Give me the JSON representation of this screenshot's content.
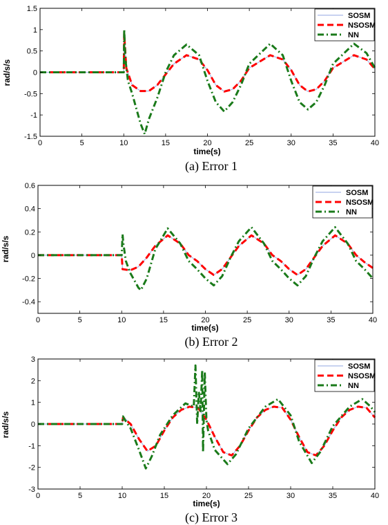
{
  "chart_data": [
    {
      "type": "line",
      "caption": "(a) Error 1",
      "xlabel": "time(s)",
      "ylabel": "rad/s/s",
      "xlim": [
        0,
        40
      ],
      "ylim": [
        -1.5,
        1.5
      ],
      "xticks": [
        0,
        5,
        10,
        15,
        20,
        25,
        30,
        35,
        40
      ],
      "yticks": [
        -1.5,
        -1,
        -0.5,
        0,
        0.5,
        1,
        1.5
      ],
      "ytick_labels": [
        "-1.5",
        "-1",
        "-0.5",
        "0",
        "0.5",
        "1",
        "1.5"
      ],
      "grid": false,
      "legend_position": "top-right",
      "series": [
        {
          "name": "SOSM",
          "color": "#a8b8e8",
          "style": "solid",
          "x": [
            0,
            10,
            10.05,
            10.3,
            11,
            12,
            13,
            14,
            15,
            16,
            17.5,
            19,
            20,
            21,
            22,
            23,
            24,
            25,
            27.5,
            29,
            30,
            31,
            32,
            33,
            34,
            35,
            37.5,
            39,
            40
          ],
          "y": [
            0,
            0,
            0.95,
            0.1,
            -0.3,
            -0.44,
            -0.44,
            -0.3,
            -0.05,
            0.2,
            0.4,
            0.3,
            0.05,
            -0.3,
            -0.45,
            -0.4,
            -0.2,
            0.1,
            0.4,
            0.3,
            0.05,
            -0.3,
            -0.45,
            -0.4,
            -0.2,
            0.1,
            0.4,
            0.3,
            0.08
          ]
        },
        {
          "name": "NSOSM",
          "color": "#ff0000",
          "style": "dashed",
          "x": [
            0,
            10,
            10.05,
            10.3,
            11,
            12,
            13,
            14,
            15,
            16,
            17.5,
            19,
            20,
            21,
            22,
            23,
            24,
            25,
            27.5,
            29,
            30,
            31,
            32,
            33,
            34,
            35,
            37.5,
            39,
            40
          ],
          "y": [
            0,
            0,
            0.9,
            0.1,
            -0.3,
            -0.44,
            -0.44,
            -0.3,
            -0.05,
            0.2,
            0.4,
            0.3,
            0.05,
            -0.3,
            -0.45,
            -0.4,
            -0.2,
            0.1,
            0.4,
            0.3,
            0.05,
            -0.3,
            -0.45,
            -0.4,
            -0.2,
            0.1,
            0.4,
            0.3,
            0.08
          ]
        },
        {
          "name": "NN",
          "color": "#1a7a1a",
          "style": "dashdot",
          "x": [
            0,
            10,
            10.05,
            10.2,
            10.5,
            11,
            12,
            12.5,
            13,
            14,
            15,
            16,
            17.5,
            19,
            20,
            21,
            22,
            23,
            24,
            25,
            27.5,
            29,
            30,
            31,
            32,
            33,
            34,
            35,
            37.5,
            39,
            40
          ],
          "y": [
            0,
            0,
            1.0,
            0.3,
            -0.2,
            -0.5,
            -1.2,
            -1.45,
            -1.1,
            -0.6,
            0.0,
            0.4,
            0.65,
            0.4,
            -0.2,
            -0.7,
            -0.92,
            -0.7,
            -0.3,
            0.2,
            0.67,
            0.4,
            -0.2,
            -0.7,
            -0.87,
            -0.7,
            -0.3,
            0.2,
            0.67,
            0.45,
            0.1
          ]
        }
      ]
    },
    {
      "type": "line",
      "caption": "(b) Error 2",
      "xlabel": "time(s)",
      "ylabel": "rad/s/s",
      "xlim": [
        0,
        40
      ],
      "ylim": [
        -0.5,
        0.6
      ],
      "xticks": [
        0,
        5,
        10,
        15,
        20,
        25,
        30,
        35,
        40
      ],
      "yticks": [
        -0.4,
        -0.2,
        0,
        0.2,
        0.4,
        0.6
      ],
      "ytick_labels": [
        "-0.4",
        "-0.2",
        "0",
        "0.2",
        "0.4",
        "0.6"
      ],
      "grid": false,
      "legend_position": "top-right",
      "series": [
        {
          "name": "SOSM",
          "color": "#a8b8e8",
          "style": "solid",
          "x": [
            0,
            10,
            10.1,
            11,
            12,
            13,
            14,
            15.5,
            17,
            18,
            19,
            20,
            21,
            22,
            23,
            24,
            25.5,
            27,
            28,
            29,
            30,
            31,
            32,
            33,
            34,
            35.5,
            37,
            38,
            39,
            40
          ],
          "y": [
            0,
            0,
            -0.12,
            -0.13,
            -0.1,
            -0.02,
            0.08,
            0.17,
            0.1,
            0.0,
            -0.05,
            -0.12,
            -0.17,
            -0.12,
            -0.02,
            0.08,
            0.17,
            0.1,
            0.0,
            -0.05,
            -0.12,
            -0.17,
            -0.12,
            -0.02,
            0.08,
            0.17,
            0.1,
            0.0,
            -0.06,
            -0.11
          ]
        },
        {
          "name": "NSOSM",
          "color": "#ff0000",
          "style": "dashed",
          "x": [
            0,
            10,
            10.1,
            11,
            12,
            13,
            14,
            15.5,
            17,
            18,
            19,
            20,
            21,
            22,
            23,
            24,
            25.5,
            27,
            28,
            29,
            30,
            31,
            32,
            33,
            34,
            35.5,
            37,
            38,
            39,
            40
          ],
          "y": [
            0,
            0,
            -0.12,
            -0.13,
            -0.1,
            -0.02,
            0.08,
            0.17,
            0.1,
            0.0,
            -0.05,
            -0.12,
            -0.17,
            -0.12,
            -0.02,
            0.08,
            0.17,
            0.1,
            0.0,
            -0.05,
            -0.12,
            -0.17,
            -0.12,
            -0.02,
            0.08,
            0.17,
            0.1,
            0.0,
            -0.06,
            -0.11
          ]
        },
        {
          "name": "NN",
          "color": "#1a7a1a",
          "style": "dashdot",
          "x": [
            0,
            10,
            10.1,
            10.2,
            10.5,
            11,
            12,
            12.3,
            13,
            14,
            15.5,
            17,
            18,
            19,
            20,
            21,
            22,
            23,
            24,
            25.5,
            27,
            28,
            29,
            30,
            31,
            32,
            33,
            34,
            35.5,
            37,
            38,
            39,
            40
          ],
          "y": [
            0,
            0,
            0.18,
            0.1,
            -0.05,
            -0.15,
            -0.28,
            -0.3,
            -0.2,
            0.05,
            0.23,
            0.1,
            -0.05,
            -0.12,
            -0.2,
            -0.26,
            -0.18,
            -0.02,
            0.12,
            0.24,
            0.1,
            -0.05,
            -0.12,
            -0.2,
            -0.26,
            -0.18,
            -0.02,
            0.12,
            0.24,
            0.1,
            -0.05,
            -0.12,
            -0.2
          ]
        }
      ]
    },
    {
      "type": "line",
      "caption": "(c) Error 3",
      "xlabel": "time(s)",
      "ylabel": "rad/s/s",
      "xlim": [
        0,
        40
      ],
      "ylim": [
        -3,
        3
      ],
      "xticks": [
        0,
        5,
        10,
        15,
        20,
        25,
        30,
        35,
        40
      ],
      "yticks": [
        -3,
        -2,
        -1,
        0,
        1,
        2,
        3
      ],
      "ytick_labels": [
        "-3",
        "-2",
        "-1",
        "0",
        "1",
        "2",
        "3"
      ],
      "grid": false,
      "legend_position": "top-right",
      "series": [
        {
          "name": "SOSM",
          "color": "#a8b8e8",
          "style": "solid",
          "x": [
            0,
            10,
            10.1,
            11,
            12,
            13,
            14,
            15,
            16,
            17,
            18,
            19,
            20,
            21,
            22,
            23,
            24,
            25,
            26,
            27,
            28,
            29,
            30,
            31,
            32,
            33,
            34,
            35,
            36,
            37,
            38,
            39,
            40
          ],
          "y": [
            0,
            0,
            0.35,
            0.0,
            -0.7,
            -1.25,
            -1.0,
            -0.3,
            0.3,
            0.65,
            0.8,
            0.75,
            0.2,
            -0.6,
            -1.3,
            -1.45,
            -1.0,
            -0.3,
            0.3,
            0.65,
            0.8,
            0.75,
            0.2,
            -0.6,
            -1.3,
            -1.45,
            -1.0,
            -0.3,
            0.3,
            0.65,
            0.8,
            0.75,
            0.3
          ]
        },
        {
          "name": "NSOSM",
          "color": "#ff0000",
          "style": "dashed",
          "x": [
            0,
            10,
            10.1,
            11,
            12,
            13,
            14,
            15,
            16,
            17,
            18,
            19,
            20,
            21,
            22,
            23,
            24,
            25,
            26,
            27,
            28,
            29,
            30,
            31,
            32,
            33,
            34,
            35,
            36,
            37,
            38,
            39,
            40
          ],
          "y": [
            0,
            0,
            0.3,
            0.0,
            -0.7,
            -1.25,
            -1.0,
            -0.3,
            0.3,
            0.65,
            0.8,
            0.75,
            0.2,
            -0.6,
            -1.3,
            -1.45,
            -1.0,
            -0.3,
            0.3,
            0.65,
            0.8,
            0.75,
            0.2,
            -0.6,
            -1.3,
            -1.45,
            -1.0,
            -0.3,
            0.3,
            0.65,
            0.8,
            0.75,
            0.3
          ]
        },
        {
          "name": "NN",
          "color": "#1a7a1a",
          "style": "dashdot",
          "x": [
            0,
            10,
            10.1,
            10.3,
            11,
            12,
            12.8,
            13.5,
            14.5,
            16,
            17.5,
            18.5,
            18.7,
            18.9,
            19.1,
            19.3,
            19.5,
            19.6,
            19.8,
            20,
            20.2,
            21,
            22.5,
            23.5,
            25,
            27,
            28.5,
            30,
            31,
            32.5,
            33.5,
            35,
            37,
            38.5,
            39.5,
            40
          ],
          "y": [
            0,
            0,
            0.35,
            0.2,
            -0.2,
            -1.2,
            -2.05,
            -1.5,
            -0.5,
            0.4,
            0.95,
            0.8,
            2.7,
            0.0,
            1.5,
            0.6,
            2.5,
            -1.3,
            2.4,
            0.2,
            -0.3,
            -1.2,
            -1.85,
            -1.4,
            -0.2,
            0.8,
            1.15,
            0.4,
            -0.8,
            -1.8,
            -1.3,
            -0.1,
            0.8,
            1.15,
            0.8,
            0.55
          ]
        }
      ]
    }
  ]
}
